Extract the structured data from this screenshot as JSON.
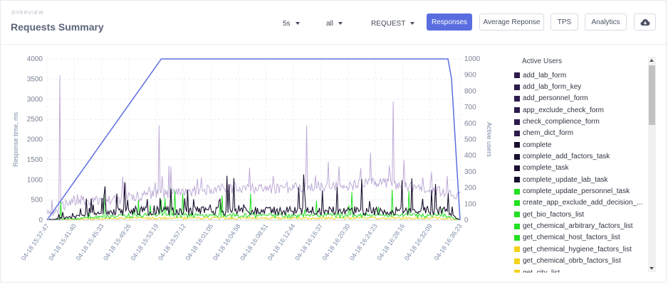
{
  "header": {
    "overline": "OVERVIEW",
    "title": "Requests Summary",
    "interval": "5s",
    "filter": "all",
    "metric_type": "REQUEST",
    "buttons": {
      "responses": "Responses",
      "average": "Average Reponse",
      "tps": "TPS",
      "analytics": "Analytics"
    },
    "download_icon": "cloud-download-icon"
  },
  "colors": {
    "accent": "#5a6de0",
    "active_users_line": "#5b6ee1",
    "response_band": "#b8a3d3"
  },
  "legend": {
    "title": "Active Users",
    "items": [
      {
        "label": "add_lab_form",
        "color": "#2c1b4a"
      },
      {
        "label": "add_lab_form_key",
        "color": "#2c1b4a"
      },
      {
        "label": "add_personnel_form",
        "color": "#2c1b4a"
      },
      {
        "label": "app_exclude_check_form",
        "color": "#2c1b4a"
      },
      {
        "label": "check_complience_form",
        "color": "#2c1b4a"
      },
      {
        "label": "chem_dict_form",
        "color": "#2c1b4a"
      },
      {
        "label": "complete",
        "color": "#1a0f2e"
      },
      {
        "label": "complete_add_factors_task",
        "color": "#1a0f2e"
      },
      {
        "label": "complete_task",
        "color": "#1a0f2e"
      },
      {
        "label": "complete_update_lab_task",
        "color": "#1a0f2e"
      },
      {
        "label": "complete_update_personnel_task",
        "color": "#22e022"
      },
      {
        "label": "create_app_exclude_add_decision_...",
        "color": "#22e022"
      },
      {
        "label": "get_bio_factors_list",
        "color": "#22e022"
      },
      {
        "label": "get_chemical_arbitrary_factors_list",
        "color": "#22e022"
      },
      {
        "label": "get_chemical_host_factors_list",
        "color": "#22e022"
      },
      {
        "label": "get_chemical_hygiene_factors_list",
        "color": "#f2d21b"
      },
      {
        "label": "get_chemical_obrb_factors_list",
        "color": "#f2d21b"
      },
      {
        "label": "get_city_list",
        "color": "#f2d21b"
      }
    ]
  },
  "chart_data": {
    "type": "line",
    "ylabel": "Response time, ms",
    "y2label": "Active users",
    "ylim": [
      0,
      4000
    ],
    "y2lim": [
      0,
      1000
    ],
    "yticks": [
      0,
      500,
      1000,
      1500,
      2000,
      2500,
      3000,
      3500,
      4000
    ],
    "y2ticks": [
      0,
      100,
      200,
      300,
      400,
      500,
      600,
      700,
      800,
      900,
      1000
    ],
    "xticks": [
      "04-18 15:37:47",
      "04-18 15:41:40",
      "04-18 15:45:33",
      "04-18 15:49:26",
      "04-18 15:53:19",
      "04-18 15:57:12",
      "04-18 16:01:05",
      "04-18 16:04:58",
      "04-18 16:08:51",
      "04-18 16:12:44",
      "04-18 16:16:37",
      "04-18 16:20:30",
      "04-18 16:24:23",
      "04-18 16:28:16",
      "04-18 16:32:09",
      "04-18 16:36:23"
    ],
    "grid": true,
    "legend_position": "right",
    "active_users": {
      "x": [
        "04-18 15:37:47",
        "04-18 15:54:00",
        "04-18 16:34:40",
        "04-18 16:35:10",
        "04-18 16:36:23"
      ],
      "y": [
        0,
        1000,
        1000,
        880,
        0
      ]
    },
    "response_band": {
      "typical": [
        {
          "x": "04-18 15:37:47",
          "y": 150
        },
        {
          "x": "04-18 15:41:40",
          "y": 500
        },
        {
          "x": "04-18 15:45:33",
          "y": 500
        },
        {
          "x": "04-18 15:49:26",
          "y": 550
        },
        {
          "x": "04-18 15:53:19",
          "y": 650
        },
        {
          "x": "04-18 15:57:12",
          "y": 700
        },
        {
          "x": "04-18 16:01:05",
          "y": 750
        },
        {
          "x": "04-18 16:04:58",
          "y": 800
        },
        {
          "x": "04-18 16:08:51",
          "y": 750
        },
        {
          "x": "04-18 16:12:44",
          "y": 800
        },
        {
          "x": "04-18 16:16:37",
          "y": 850
        },
        {
          "x": "04-18 16:20:30",
          "y": 850
        },
        {
          "x": "04-18 16:24:23",
          "y": 950
        },
        {
          "x": "04-18 16:28:16",
          "y": 850
        },
        {
          "x": "04-18 16:32:09",
          "y": 800
        },
        {
          "x": "04-18 16:36:23",
          "y": 550
        }
      ],
      "peaks": [
        {
          "x": "04-18 15:39:40",
          "y": 3600
        },
        {
          "x": "04-18 15:53:40",
          "y": 2350
        },
        {
          "x": "04-18 16:14:40",
          "y": 2350
        },
        {
          "x": "04-18 16:26:50",
          "y": 2950
        }
      ]
    }
  }
}
